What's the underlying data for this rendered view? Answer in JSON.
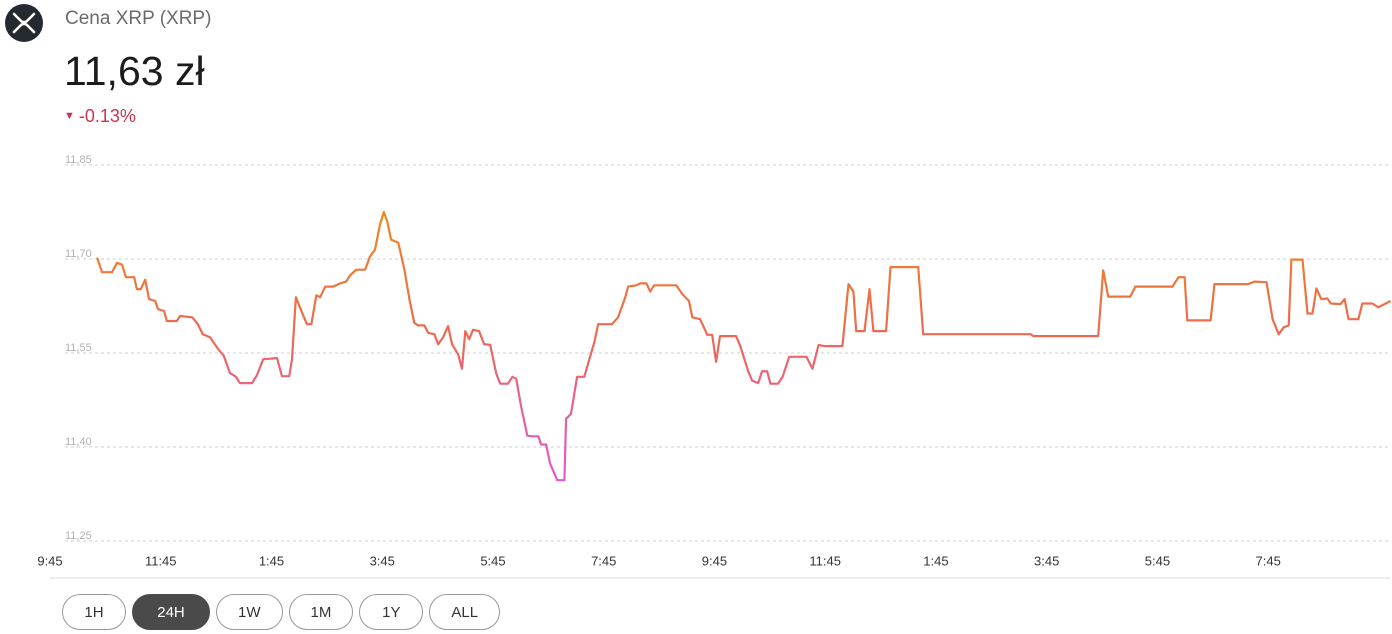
{
  "header": {
    "name": "Cena XRP (XRP)",
    "price": "11,63 zł",
    "change": "-0.13%"
  },
  "ranges": [
    "1H",
    "24H",
    "1W",
    "1M",
    "1Y",
    "ALL"
  ],
  "selected_range": "24H",
  "chart_data": {
    "type": "line",
    "gradient": [
      "#f08a1c",
      "#ec6a50",
      "#e457d8"
    ],
    "xlim": [
      0,
      24.2
    ],
    "ylim": [
      11.25,
      11.85
    ],
    "grid": true,
    "yticks": [
      {
        "value": 11.85,
        "label": "11,85"
      },
      {
        "value": 11.7,
        "label": "11,70"
      },
      {
        "value": 11.55,
        "label": "11,55"
      },
      {
        "value": 11.4,
        "label": "11,40"
      },
      {
        "value": 11.25,
        "label": "11,25"
      }
    ],
    "xticks": [
      {
        "value": 0,
        "label": "9:45"
      },
      {
        "value": 2,
        "label": "11:45"
      },
      {
        "value": 4,
        "label": "1:45"
      },
      {
        "value": 6,
        "label": "3:45"
      },
      {
        "value": 8,
        "label": "5:45"
      },
      {
        "value": 10,
        "label": "7:45"
      },
      {
        "value": 12,
        "label": "9:45"
      },
      {
        "value": 14,
        "label": "11:45"
      },
      {
        "value": 16,
        "label": "1:45"
      },
      {
        "value": 18,
        "label": "3:45"
      },
      {
        "value": 20,
        "label": "5:45"
      },
      {
        "value": 22,
        "label": "7:45"
      }
    ],
    "x": [
      0.85,
      0.94,
      1.12,
      1.21,
      1.3,
      1.37,
      1.52,
      1.57,
      1.64,
      1.72,
      1.79,
      1.9,
      1.95,
      2.06,
      2.11,
      2.29,
      2.35,
      2.57,
      2.67,
      2.76,
      2.89,
      3.04,
      3.14,
      3.25,
      3.36,
      3.43,
      3.65,
      3.74,
      3.85,
      4.1,
      4.19,
      4.32,
      4.37,
      4.44,
      4.55,
      4.64,
      4.72,
      4.81,
      4.88,
      4.97,
      5.11,
      5.24,
      5.35,
      5.42,
      5.53,
      5.69,
      5.78,
      5.87,
      5.96,
      6.03,
      6.09,
      6.16,
      6.29,
      6.4,
      6.49,
      6.58,
      6.65,
      6.76,
      6.83,
      6.94,
      7.01,
      7.1,
      7.19,
      7.26,
      7.37,
      7.44,
      7.5,
      7.57,
      7.64,
      7.75,
      7.84,
      7.95,
      8.06,
      8.13,
      8.27,
      8.35,
      8.42,
      8.51,
      8.62,
      8.71,
      8.82,
      8.87,
      8.96,
      9.03,
      9.16,
      9.29,
      9.32,
      9.41,
      9.52,
      9.65,
      9.74,
      9.83,
      9.9,
      10.15,
      10.26,
      10.39,
      10.44,
      10.59,
      10.66,
      10.77,
      10.84,
      10.91,
      11.31,
      11.42,
      11.54,
      11.6,
      11.74,
      11.87,
      11.96,
      12.03,
      12.1,
      12.39,
      12.47,
      12.61,
      12.68,
      12.79,
      12.86,
      12.95,
      13.01,
      13.15,
      13.23,
      13.35,
      13.66,
      13.77,
      13.88,
      13.98,
      14.31,
      14.42,
      14.51,
      14.56,
      14.71,
      14.8,
      14.87,
      15.1,
      15.18,
      15.68,
      15.77,
      17.71,
      17.76,
      18.93,
      19.02,
      19.11,
      19.51,
      19.6,
      20.27,
      20.38,
      20.49,
      20.54,
      20.96,
      21.03,
      21.64,
      21.75,
      21.97,
      22.08,
      22.19,
      22.28,
      22.37,
      22.42,
      22.62,
      22.71,
      22.8,
      22.87,
      22.96,
      23.07,
      23.13,
      23.31,
      23.38,
      23.45,
      23.63,
      23.7,
      23.88,
      23.99,
      24.12,
      24.21
    ],
    "series": [
      {
        "values": [
          11.702,
          11.679,
          11.679,
          11.694,
          11.691,
          11.671,
          11.671,
          11.652,
          11.652,
          11.667,
          11.636,
          11.633,
          11.62,
          11.617,
          11.601,
          11.601,
          11.609,
          11.607,
          11.596,
          11.58,
          11.575,
          11.556,
          11.545,
          11.518,
          11.512,
          11.502,
          11.502,
          11.515,
          11.54,
          11.542,
          11.513,
          11.513,
          11.54,
          11.639,
          11.615,
          11.596,
          11.596,
          11.642,
          11.639,
          11.656,
          11.656,
          11.661,
          11.664,
          11.674,
          11.683,
          11.683,
          11.704,
          11.715,
          11.755,
          11.775,
          11.76,
          11.731,
          11.726,
          11.683,
          11.636,
          11.598,
          11.594,
          11.594,
          11.582,
          11.58,
          11.564,
          11.575,
          11.593,
          11.564,
          11.548,
          11.525,
          11.585,
          11.572,
          11.587,
          11.585,
          11.564,
          11.563,
          11.517,
          11.501,
          11.501,
          11.512,
          11.509,
          11.464,
          11.418,
          11.417,
          11.417,
          11.404,
          11.404,
          11.374,
          11.347,
          11.347,
          11.445,
          11.453,
          11.512,
          11.512,
          11.54,
          11.567,
          11.596,
          11.596,
          11.607,
          11.639,
          11.656,
          11.658,
          11.661,
          11.661,
          11.648,
          11.658,
          11.658,
          11.644,
          11.633,
          11.607,
          11.604,
          11.579,
          11.579,
          11.536,
          11.577,
          11.577,
          11.56,
          11.521,
          11.506,
          11.502,
          11.521,
          11.521,
          11.501,
          11.501,
          11.512,
          11.544,
          11.544,
          11.525,
          11.563,
          11.561,
          11.561,
          11.66,
          11.648,
          11.585,
          11.585,
          11.652,
          11.585,
          11.585,
          11.687,
          11.687,
          11.58,
          11.58,
          11.577,
          11.577,
          11.682,
          11.64,
          11.64,
          11.656,
          11.656,
          11.671,
          11.671,
          11.602,
          11.602,
          11.66,
          11.66,
          11.664,
          11.663,
          11.604,
          11.58,
          11.591,
          11.594,
          11.699,
          11.699,
          11.613,
          11.613,
          11.653,
          11.636,
          11.637,
          11.629,
          11.628,
          11.636,
          11.604,
          11.604,
          11.629,
          11.629,
          11.623,
          11.629,
          11.633
        ]
      }
    ]
  }
}
